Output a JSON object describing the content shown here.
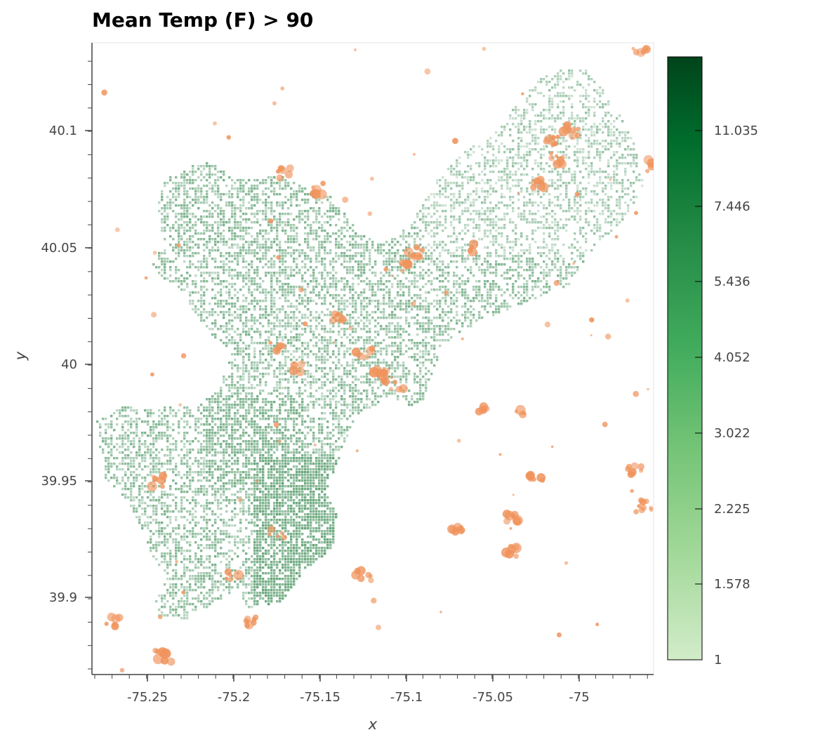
{
  "plot": {
    "title": "Mean Temp (F) > 90",
    "xlabel": "x",
    "ylabel": "y"
  },
  "chart_data": {
    "type": "heatmap",
    "title": "Mean Temp (F) > 90",
    "xlabel": "x",
    "ylabel": "y",
    "xlim": [
      -75.28,
      -74.955
    ],
    "ylim": [
      39.87,
      40.138
    ],
    "x_ticks": [
      "-75.25",
      "-75.2",
      "-75.15",
      "-75.1",
      "-75.05",
      "-75"
    ],
    "y_ticks": [
      "40.1",
      "40.05",
      "40",
      "39.95",
      "39.9"
    ],
    "colorbar": {
      "colormap": "Greens",
      "range": [
        1,
        13
      ],
      "ticks": [
        "11.035",
        "7.446",
        "5.436",
        "4.052",
        "3.022",
        "2.225",
        "1.578",
        "1"
      ],
      "colors": [
        "#d2ecc9",
        "#a4d99b",
        "#74c476",
        "#41ab5d",
        "#238b45",
        "#006d2c",
        "#00441b"
      ]
    },
    "layers": [
      {
        "role": "density",
        "color": "#5a9e6f"
      },
      {
        "role": "overlay",
        "color": "#f0935c"
      }
    ],
    "hotspots": [
      {
        "x": -75.245,
        "y": 39.95
      },
      {
        "x": -75.175,
        "y": 40.008
      },
      {
        "x": -75.165,
        "y": 39.998
      },
      {
        "x": -75.14,
        "y": 40.02
      },
      {
        "x": -75.125,
        "y": 40.005
      },
      {
        "x": -75.115,
        "y": 39.995
      },
      {
        "x": -75.105,
        "y": 39.99
      },
      {
        "x": -75.1,
        "y": 40.042
      },
      {
        "x": -75.095,
        "y": 40.048
      },
      {
        "x": -75.06,
        "y": 40.05
      },
      {
        "x": -75.025,
        "y": 40.078
      },
      {
        "x": -75.015,
        "y": 40.096
      },
      {
        "x": -75.005,
        "y": 40.1
      },
      {
        "x": -75.012,
        "y": 40.088
      },
      {
        "x": -74.962,
        "y": 40.085
      },
      {
        "x": -75.07,
        "y": 39.928
      },
      {
        "x": -75.058,
        "y": 39.982
      },
      {
        "x": -75.035,
        "y": 39.98
      },
      {
        "x": -75.025,
        "y": 39.952
      },
      {
        "x": -75.04,
        "y": 39.92
      },
      {
        "x": -75.038,
        "y": 39.935
      },
      {
        "x": -75.175,
        "y": 39.928
      },
      {
        "x": -75.2,
        "y": 39.91
      },
      {
        "x": -75.125,
        "y": 39.91
      },
      {
        "x": -75.19,
        "y": 39.89
      },
      {
        "x": -75.27,
        "y": 39.89
      },
      {
        "x": -75.24,
        "y": 39.875
      },
      {
        "x": -74.962,
        "y": 39.94
      },
      {
        "x": -74.968,
        "y": 39.955
      },
      {
        "x": -75.15,
        "y": 40.075
      },
      {
        "x": -75.17,
        "y": 40.082
      },
      {
        "x": -74.965,
        "y": 40.135
      }
    ]
  }
}
